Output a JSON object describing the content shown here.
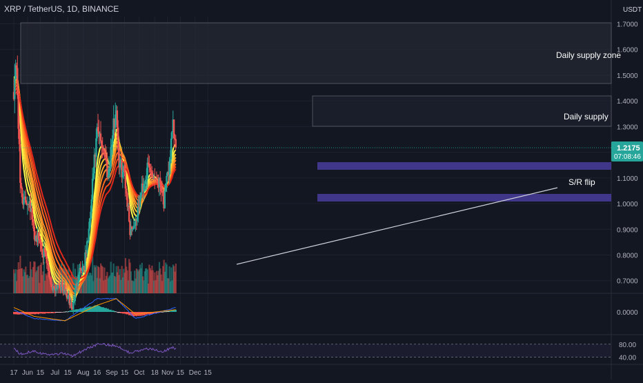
{
  "header": {
    "title": "XRP / TetherUS, 1D, BINANCE",
    "currency": "USDT"
  },
  "price_tag": {
    "price": "1.2175",
    "countdown": "07:08:46"
  },
  "annotations": {
    "supply_zone": "Daily supply zone",
    "supply": "Daily supply",
    "sr_flip": "S/R flip"
  },
  "colors": {
    "background": "#131722",
    "up_candle": "#26a69a",
    "down_candle": "#ef5350",
    "rsi_line": "#7e57c2",
    "macd_line": "#2962ff",
    "signal_line": "#ff9800",
    "zone_band": "#4a3d9c",
    "price_tag": "#26a69a"
  },
  "chart_data": {
    "type": "line",
    "title": "XRP / TetherUS, 1D, BINANCE",
    "xlabel": "",
    "ylabel": "",
    "x_ticks": [
      "17",
      "Jun",
      "15",
      "Jul",
      "15",
      "Aug",
      "16",
      "Sep",
      "15",
      "Oct",
      "18",
      "Nov",
      "15",
      "Dec",
      "15"
    ],
    "y_ticks": [
      "1.7000",
      "1.6000",
      "1.5000",
      "1.4000",
      "1.3000",
      "1.2000",
      "1.1000",
      "1.0000",
      "0.9000",
      "0.8000",
      "0.7000"
    ],
    "ylim": [
      0.66,
      1.76
    ],
    "macd_ticks": [
      "0.0000"
    ],
    "rsi_ticks": [
      "80.00",
      "40.00"
    ],
    "grid": true,
    "price_series": {
      "name": "XRP/USDT daily close",
      "points": [
        [
          "2021-05-17",
          1.45
        ],
        [
          "2021-05-20",
          1.55
        ],
        [
          "2021-05-24",
          1.08
        ],
        [
          "2021-05-28",
          1.0
        ],
        [
          "2021-06-03",
          1.02
        ],
        [
          "2021-06-08",
          0.88
        ],
        [
          "2021-06-14",
          0.86
        ],
        [
          "2021-06-21",
          0.78
        ],
        [
          "2021-06-28",
          0.67
        ],
        [
          "2021-07-05",
          0.69
        ],
        [
          "2021-07-12",
          0.66
        ],
        [
          "2021-07-20",
          0.59
        ],
        [
          "2021-07-27",
          0.74
        ],
        [
          "2021-08-02",
          0.76
        ],
        [
          "2021-08-08",
          0.92
        ],
        [
          "2021-08-12",
          1.12
        ],
        [
          "2021-08-16",
          1.27
        ],
        [
          "2021-08-23",
          1.22
        ],
        [
          "2021-08-28",
          1.11
        ],
        [
          "2021-09-02",
          1.27
        ],
        [
          "2021-09-06",
          1.38
        ],
        [
          "2021-09-09",
          1.15
        ],
        [
          "2021-09-15",
          1.12
        ],
        [
          "2021-09-21",
          0.9
        ],
        [
          "2021-09-27",
          0.93
        ],
        [
          "2021-10-04",
          1.06
        ],
        [
          "2021-10-11",
          1.14
        ],
        [
          "2021-10-18",
          1.1
        ],
        [
          "2021-10-25",
          1.08
        ],
        [
          "2021-10-28",
          1.0
        ],
        [
          "2021-11-02",
          1.13
        ],
        [
          "2021-11-07",
          1.29
        ],
        [
          "2021-11-10",
          1.2175
        ]
      ]
    },
    "macd": {
      "macd_line": [
        [
          "2021-05-17",
          0.01
        ],
        [
          "2021-06-08",
          -0.03
        ],
        [
          "2021-07-12",
          -0.04
        ],
        [
          "2021-08-16",
          0.06
        ],
        [
          "2021-09-06",
          0.06
        ],
        [
          "2021-09-27",
          -0.03
        ],
        [
          "2021-11-10",
          0.02
        ]
      ],
      "signal_line": [
        [
          "2021-05-17",
          0.02
        ],
        [
          "2021-06-08",
          -0.02
        ],
        [
          "2021-07-12",
          -0.04
        ],
        [
          "2021-08-16",
          0.03
        ],
        [
          "2021-09-06",
          0.06
        ],
        [
          "2021-09-27",
          -0.01
        ],
        [
          "2021-11-10",
          0.01
        ]
      ]
    },
    "rsi": {
      "points": [
        [
          "2021-05-17",
          58
        ],
        [
          "2021-05-24",
          40
        ],
        [
          "2021-06-08",
          50
        ],
        [
          "2021-06-21",
          38
        ],
        [
          "2021-07-12",
          42
        ],
        [
          "2021-07-20",
          35
        ],
        [
          "2021-08-16",
          70
        ],
        [
          "2021-09-06",
          66
        ],
        [
          "2021-09-21",
          44
        ],
        [
          "2021-10-11",
          56
        ],
        [
          "2021-10-28",
          48
        ],
        [
          "2021-11-07",
          62
        ],
        [
          "2021-11-10",
          55
        ]
      ]
    }
  }
}
